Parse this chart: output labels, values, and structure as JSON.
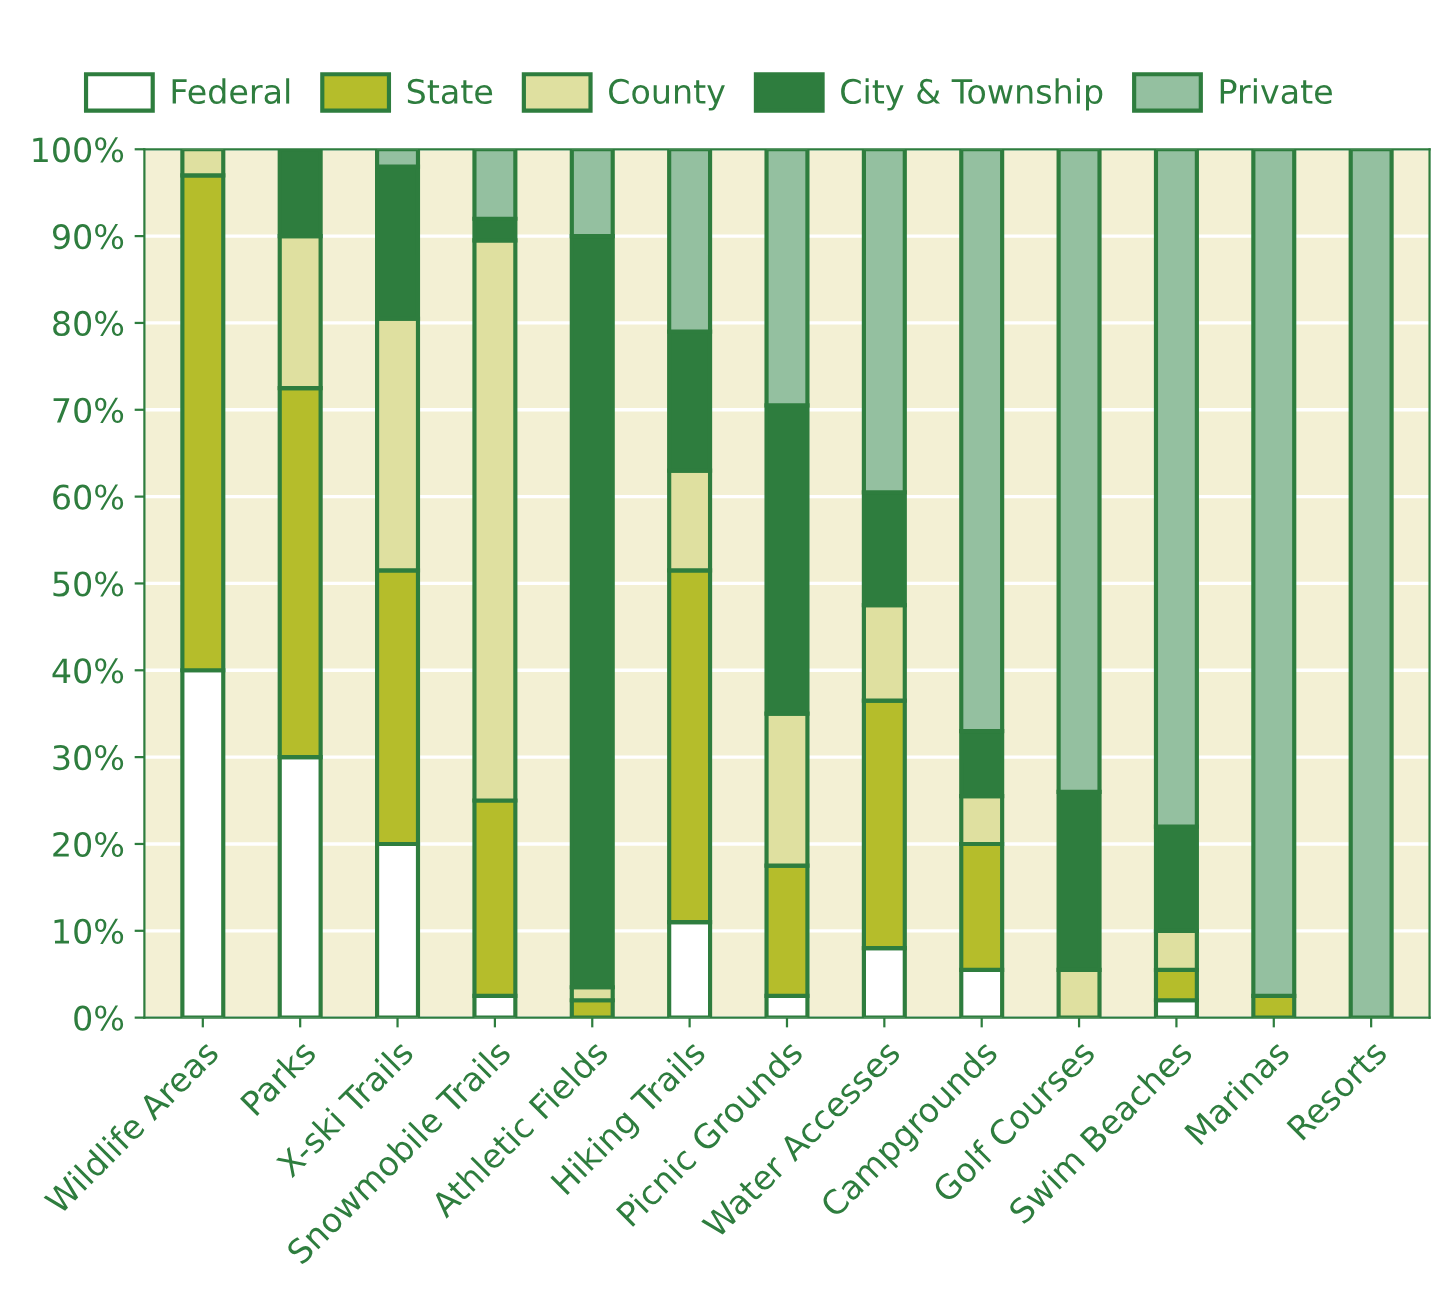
{
  "chart_data": {
    "type": "bar",
    "stacked": true,
    "categories": [
      "Wildlife Areas",
      "Parks",
      "X-ski Trails",
      "Snowmobile Trails",
      "Athletic Fields",
      "Hiking Trails",
      "Picnic Grounds",
      "Water Accesses",
      "Campgrounds",
      "Golf Courses",
      "Swim Beaches",
      "Marinas",
      "Resorts"
    ],
    "series": [
      {
        "name": "Federal",
        "color": "#ffffff",
        "values": [
          40,
          30,
          20,
          2.5,
          0,
          11,
          2.5,
          8,
          5.5,
          0,
          2,
          0,
          0
        ]
      },
      {
        "name": "State",
        "color": "#b5bd2b",
        "values": [
          57,
          42.5,
          31.5,
          22.5,
          2,
          40.5,
          15,
          28.5,
          14.5,
          0,
          3.5,
          2.5,
          0
        ]
      },
      {
        "name": "County",
        "color": "#dfe0a0",
        "values": [
          3,
          17.5,
          29,
          64.5,
          1.5,
          11.5,
          17.5,
          11,
          5.5,
          5.5,
          4.5,
          0,
          0
        ]
      },
      {
        "name": "City & Township",
        "color": "#2e7d3e",
        "values": [
          0,
          10,
          17.5,
          2.5,
          86.5,
          16,
          35.5,
          13,
          7.5,
          20.5,
          12,
          0,
          0
        ]
      },
      {
        "name": "Private",
        "color": "#94c0a0",
        "values": [
          0,
          0,
          2,
          8,
          10,
          21,
          29.5,
          39.5,
          67,
          74,
          78,
          97.5,
          100
        ]
      }
    ],
    "ylim": [
      0,
      100
    ],
    "yticks": [
      {
        "value": 0,
        "label": "0%"
      },
      {
        "value": 10,
        "label": "10%"
      },
      {
        "value": 20,
        "label": "20%"
      },
      {
        "value": 30,
        "label": "30%"
      },
      {
        "value": 40,
        "label": "40%"
      },
      {
        "value": 50,
        "label": "50%"
      },
      {
        "value": 60,
        "label": "60%"
      },
      {
        "value": 70,
        "label": "70%"
      },
      {
        "value": 80,
        "label": "80%"
      },
      {
        "value": 90,
        "label": "90%"
      },
      {
        "value": 100,
        "label": "100%"
      }
    ],
    "grid": "y",
    "legend": "top"
  }
}
